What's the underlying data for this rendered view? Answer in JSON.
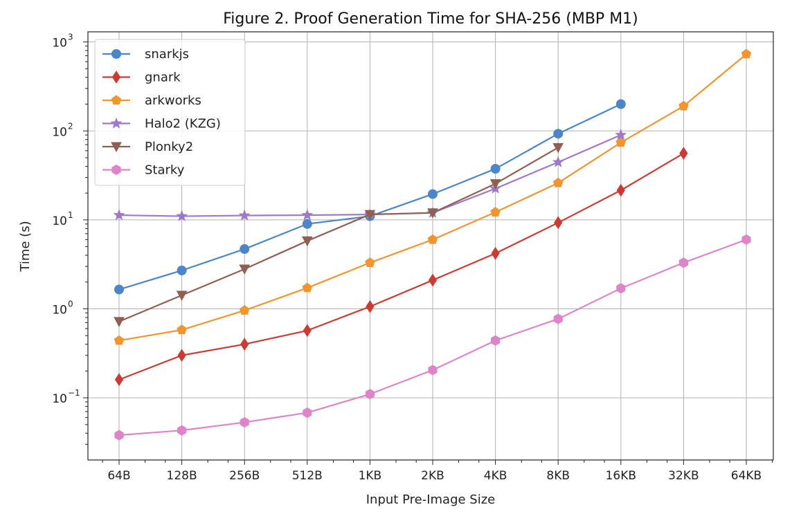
{
  "chart_data": {
    "type": "line",
    "title": "Figure 2. Proof Generation Time for SHA-256 (MBP M1)",
    "xlabel": "Input Pre-Image Size",
    "ylabel": "Time (s)",
    "yscale": "log",
    "ylim": [
      0.02,
      1300
    ],
    "yticks": [
      {
        "value": 0.1,
        "base": "10",
        "exp": "−1"
      },
      {
        "value": 1,
        "base": "10",
        "exp": "0"
      },
      {
        "value": 10,
        "base": "10",
        "exp": "1"
      },
      {
        "value": 100,
        "base": "10",
        "exp": "2"
      },
      {
        "value": 1000,
        "base": "10",
        "exp": "3"
      }
    ],
    "categories": [
      "64B",
      "128B",
      "256B",
      "512B",
      "1KB",
      "2KB",
      "4KB",
      "8KB",
      "16KB",
      "32KB",
      "64KB"
    ],
    "grid": true,
    "legend_position": "top-left",
    "series": [
      {
        "name": "snarkjs",
        "color": "#4c86c6",
        "marker": "circle",
        "values": [
          1.65,
          2.7,
          4.7,
          9.0,
          11.0,
          19.5,
          37.5,
          93,
          200,
          null,
          null
        ]
      },
      {
        "name": "gnark",
        "color": "#cc3b33",
        "marker": "diamond",
        "values": [
          0.16,
          0.3,
          0.4,
          0.57,
          1.06,
          2.1,
          4.2,
          9.3,
          21.5,
          56,
          null
        ]
      },
      {
        "name": "arkworks",
        "color": "#f0952f",
        "marker": "pentagon",
        "values": [
          0.44,
          0.58,
          0.96,
          1.72,
          3.3,
          6.0,
          12.2,
          26,
          74,
          190,
          730
        ]
      },
      {
        "name": "Halo2 (KZG)",
        "color": "#9e78c9",
        "marker": "star",
        "values": [
          11.3,
          11.0,
          11.2,
          11.3,
          11.5,
          12.0,
          22.5,
          44.5,
          90,
          null,
          null
        ]
      },
      {
        "name": "Plonky2",
        "color": "#8f5f53",
        "marker": "triangle-down",
        "values": [
          0.72,
          1.42,
          2.8,
          5.8,
          11.5,
          12.0,
          25.5,
          65,
          null,
          null,
          null
        ]
      },
      {
        "name": "Starky",
        "color": "#de84c8",
        "marker": "hexagon",
        "values": [
          0.038,
          0.043,
          0.053,
          0.068,
          0.11,
          0.205,
          0.44,
          0.77,
          1.7,
          3.3,
          6.0
        ]
      }
    ]
  }
}
